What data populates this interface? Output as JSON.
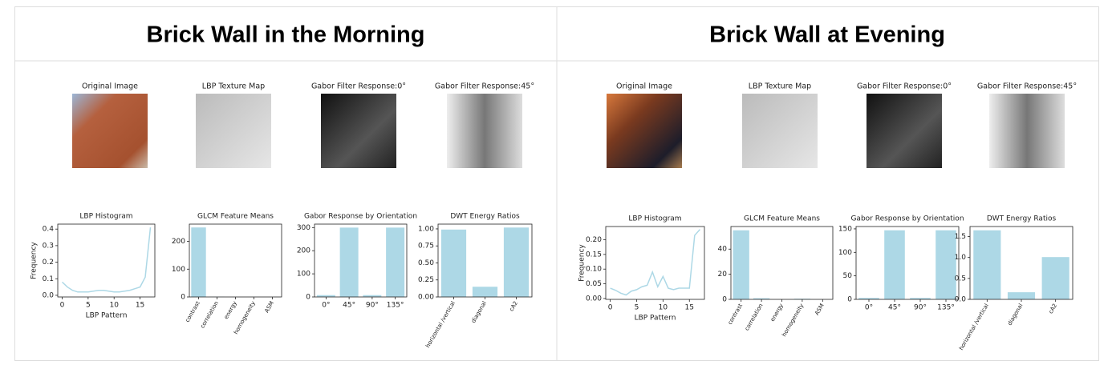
{
  "panels": [
    {
      "title": "Brick Wall in the Morning",
      "images": [
        "Original Image",
        "LBP Texture Map",
        "Gabor Filter Response:0°",
        "Gabor Filter Response:45°"
      ]
    },
    {
      "title": "Brick Wall at Evening",
      "images": [
        "Original Image",
        "LBP Texture Map",
        "Gabor Filter Response:0°",
        "Gabor Filter Response:45°"
      ]
    }
  ],
  "chart_data": [
    {
      "type": "line",
      "title": "LBP Histogram",
      "x_label": "LBP Pattern",
      "y_label": "Frequency",
      "color": "#add8e6",
      "x": [
        0,
        1,
        2,
        3,
        4,
        5,
        6,
        7,
        8,
        9,
        10,
        11,
        12,
        13,
        14,
        15,
        16,
        17
      ],
      "values": [
        0.08,
        0.05,
        0.03,
        0.02,
        0.02,
        0.02,
        0.025,
        0.03,
        0.03,
        0.025,
        0.02,
        0.02,
        0.025,
        0.03,
        0.04,
        0.05,
        0.11,
        0.41
      ],
      "xlim": [
        -0.85,
        17.85
      ],
      "xticks": [
        0,
        5,
        10,
        15
      ],
      "ylim": [
        -0.01,
        0.43
      ],
      "yticks": [
        {
          "value": 0,
          "label": "0.0"
        },
        0.1,
        0.2,
        0.3,
        0.4
      ]
    },
    {
      "type": "bar",
      "title": "GLCM Feature Means",
      "color": "#add8e6",
      "categories": [
        "contrast",
        "correlation",
        "energy",
        "homogeneity",
        "ASM"
      ],
      "values": [
        250,
        0.9,
        0.05,
        0.3,
        0.01
      ],
      "ylim": [
        0,
        262
      ],
      "yticks": [
        0,
        100,
        200
      ]
    },
    {
      "type": "bar",
      "title": "Gabor Response by Orientation",
      "color": "#add8e6",
      "categories": [
        "0°",
        "45°",
        "90°",
        "135°"
      ],
      "values": [
        8,
        300,
        8,
        300
      ],
      "ylim": [
        0,
        315
      ],
      "yticks": [
        0,
        100,
        200,
        300
      ]
    },
    {
      "type": "bar",
      "title": "DWT Energy Ratios",
      "color": "#add8e6",
      "categories": [
        "horizontal /vertical",
        "diagonal",
        "cA2"
      ],
      "values": [
        0.99,
        0.15,
        1.02
      ],
      "ylim": [
        0,
        1.07
      ],
      "yticks": [
        {
          "value": 0,
          "label": "0.00"
        },
        0.25,
        {
          "value": 0.5,
          "label": "0.50"
        },
        0.75,
        {
          "value": 1,
          "label": "1.00"
        }
      ]
    },
    {
      "type": "line",
      "title": "LBP Histogram",
      "x_label": "LBP Pattern",
      "y_label": "Frequency",
      "color": "#add8e6",
      "x": [
        0,
        1,
        2,
        3,
        4,
        5,
        6,
        7,
        8,
        9,
        10,
        11,
        12,
        13,
        14,
        15,
        16,
        17
      ],
      "values": [
        0.035,
        0.028,
        0.018,
        0.012,
        0.025,
        0.03,
        0.04,
        0.045,
        0.09,
        0.04,
        0.075,
        0.035,
        0.03,
        0.035,
        0.035,
        0.035,
        0.215,
        0.235
      ],
      "xlim": [
        -0.85,
        17.85
      ],
      "xticks": [
        0,
        5,
        10,
        15
      ],
      "ylim": [
        -0.003,
        0.245
      ],
      "yticks": [
        {
          "value": 0,
          "label": "0.00"
        },
        0.05,
        {
          "value": 0.1,
          "label": "0.10"
        },
        0.15,
        {
          "value": 0.2,
          "label": "0.20"
        }
      ]
    },
    {
      "type": "bar",
      "title": "GLCM Feature Means",
      "color": "#add8e6",
      "categories": [
        "contrast",
        "correlation",
        "energy",
        "homogeneity",
        "ASM"
      ],
      "values": [
        55,
        0.9,
        0.05,
        0.5,
        0.01
      ],
      "ylim": [
        0,
        58
      ],
      "yticks": [
        0,
        20,
        40
      ]
    },
    {
      "type": "bar",
      "title": "Gabor Response by Orientation",
      "color": "#add8e6",
      "categories": [
        "0°",
        "45°",
        "90°",
        "135°"
      ],
      "values": [
        3,
        147,
        3,
        147
      ],
      "ylim": [
        0,
        155
      ],
      "yticks": [
        0,
        50,
        100,
        150
      ]
    },
    {
      "type": "bar",
      "title": "DWT Energy Ratios",
      "color": "#add8e6",
      "categories": [
        "horizontal /vertical",
        "diagonal",
        "cA2"
      ],
      "values": [
        1.65,
        0.17,
        1.01
      ],
      "ylim": [
        0,
        1.74
      ],
      "yticks": [
        {
          "value": 0,
          "label": "0.0"
        },
        0.5,
        {
          "value": 1,
          "label": "1.0"
        },
        1.5
      ]
    }
  ]
}
